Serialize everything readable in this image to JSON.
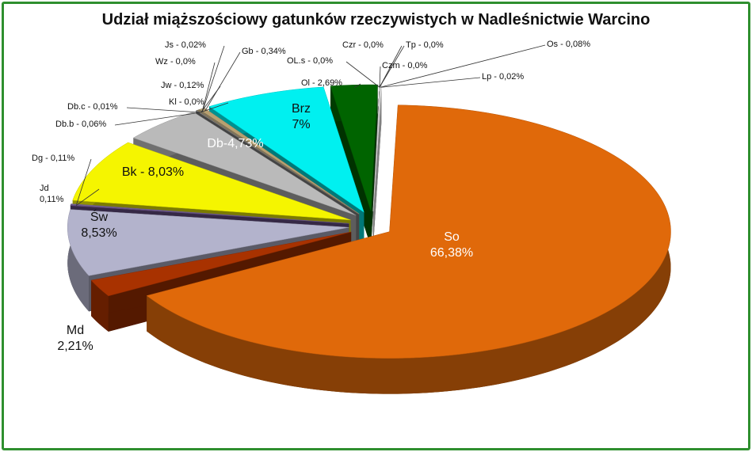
{
  "chart_data": {
    "type": "pie",
    "title": "Udział miąższościowy gatunków rzeczywistych w Nadleśnictwie Warcino",
    "values": [
      66.38,
      2.21,
      8.53,
      0.11,
      0.11,
      8.03,
      4.73,
      0.06,
      0.01,
      0.0,
      0.12,
      0.0,
      0.02,
      0.34,
      7,
      2.69,
      0.0,
      0.0,
      0.0,
      0.0,
      0.08,
      0.02
    ],
    "value_labels": [
      "So\n66,38%",
      "Md\n2,21%",
      "Św\n8,53%",
      "Jd\n0,11%",
      "Dg - 0,11%",
      "Bk - 8,03%",
      "Db-4,73%",
      "Db.b - 0,06%",
      "Db.c - 0,01%",
      "Kl - 0,0%",
      "Jw - 0,12%",
      "Wz - 0,0%",
      "Js - 0,02%",
      "Gb - 0,34%",
      "Brz\n7%",
      "Ol - 2,69%",
      "OL.s - 0,0%",
      "Czr - 0,0%",
      "Czm - 0,0%",
      "Tp - 0,0%",
      "Os - 0,08%",
      "Lp - 0,02%"
    ],
    "colors": [
      "#e0690a",
      "#a83200",
      "#b3b3cc",
      "#6a4f8a",
      "#7a6a9a",
      "#f5f500",
      "#bababa",
      "#888888",
      "#999999",
      "#777777",
      "#8a7a5a",
      "#aaaaaa",
      "#777766",
      "#b8a070",
      "#00f0f0",
      "#006400",
      "#1a5a1a",
      "#222222",
      "#444444",
      "#333333",
      "#d0d0d0",
      "#ffffff"
    ]
  }
}
